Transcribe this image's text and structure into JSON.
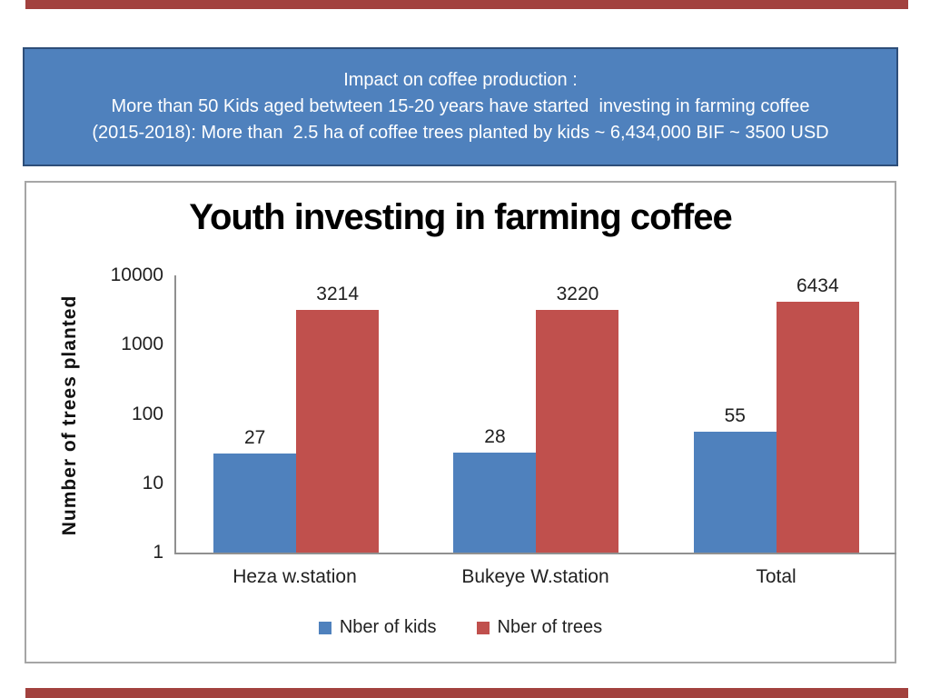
{
  "slide": {
    "background": "#FFFFFF",
    "top_accent_color": "#A2413E",
    "bottom_accent_color": "#A2413E"
  },
  "header": {
    "fill": "#4F81BD",
    "border": "#2E4E79",
    "text_color": "#FFFFFF",
    "line1": "Impact on coffee production :",
    "line2": "More than 50 Kids aged betwteen 15-20 years have started  investing in farming coffee",
    "line3": "(2015-2018): More than  2.5 ha of coffee trees planted by kids ~ 6,434,000 BIF ~ 3500 USD"
  },
  "chart_data": {
    "type": "bar",
    "title": "Youth investing in farming coffee",
    "ylabel": "Number of trees planted",
    "xlabel": "",
    "y_scale": "log",
    "ylim": [
      1,
      10000
    ],
    "y_ticks": [
      "10000",
      "1000",
      "100",
      "10",
      "1"
    ],
    "grid": false,
    "legend_position": "bottom",
    "categories": [
      "Heza w.station",
      "Bukeye W.station",
      "Total"
    ],
    "series": [
      {
        "name": "Nber of kids",
        "color": "#4F81BD",
        "values": [
          27,
          28,
          55
        ]
      },
      {
        "name": "Nber of trees",
        "color": "#C0504D",
        "values": [
          3214,
          3220,
          6434
        ]
      }
    ],
    "chart_border_color": "#A6A6A6",
    "axis_color": "#909090"
  }
}
